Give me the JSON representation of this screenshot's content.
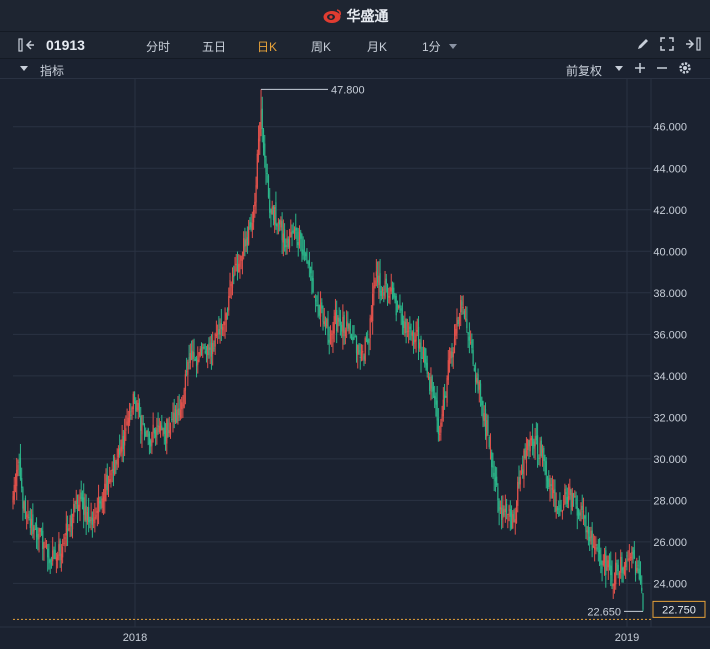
{
  "app": {
    "title": "华盛通"
  },
  "toolbar": {
    "code": "01913",
    "timeframes": [
      {
        "label": "分时",
        "active": false
      },
      {
        "label": "五日",
        "active": false
      },
      {
        "label": "日K",
        "active": true
      },
      {
        "label": "周K",
        "active": false
      },
      {
        "label": "月K",
        "active": false
      },
      {
        "label": "1分",
        "active": false,
        "dropdown": true
      }
    ]
  },
  "indicator_bar": {
    "label": "指标",
    "adjust": "前复权"
  },
  "colors": {
    "up": "#e2524c",
    "down": "#2bb68a",
    "accent": "#e8a33a",
    "bg": "#1b2230",
    "grid": "#2a3242"
  },
  "chart_data": {
    "type": "candlestick",
    "y_ticks": [
      "46.000",
      "44.000",
      "42.000",
      "40.000",
      "38.000",
      "36.000",
      "34.000",
      "32.000",
      "30.000",
      "28.000",
      "26.000",
      "24.000"
    ],
    "ylim": [
      21.9,
      48.3
    ],
    "x_ticks": [
      "2018",
      "2019"
    ],
    "high_label": "47.800",
    "low_label": "22.650",
    "last_price": "22.750",
    "anchors": [
      [
        0,
        28.2
      ],
      [
        4,
        29.7
      ],
      [
        10,
        27.1
      ],
      [
        18,
        26.6
      ],
      [
        25,
        26.0
      ],
      [
        30,
        25.0
      ],
      [
        36,
        25.4
      ],
      [
        44,
        26.5
      ],
      [
        50,
        27.6
      ],
      [
        56,
        27.9
      ],
      [
        62,
        26.9
      ],
      [
        68,
        27.5
      ],
      [
        74,
        28.8
      ],
      [
        80,
        29.5
      ],
      [
        86,
        30.2
      ],
      [
        92,
        31.8
      ],
      [
        98,
        32.8
      ],
      [
        104,
        31.7
      ],
      [
        110,
        30.7
      ],
      [
        116,
        31.5
      ],
      [
        122,
        31.2
      ],
      [
        128,
        31.9
      ],
      [
        134,
        32.1
      ],
      [
        140,
        34.2
      ],
      [
        146,
        34.9
      ],
      [
        152,
        35.2
      ],
      [
        158,
        35.0
      ],
      [
        164,
        36.0
      ],
      [
        170,
        36.6
      ],
      [
        176,
        38.4
      ],
      [
        182,
        39.4
      ],
      [
        188,
        40.6
      ],
      [
        194,
        42.0
      ],
      [
        200,
        46.8
      ],
      [
        204,
        43.8
      ],
      [
        208,
        41.8
      ],
      [
        214,
        41.4
      ],
      [
        220,
        40.2
      ],
      [
        226,
        40.9
      ],
      [
        232,
        40.6
      ],
      [
        238,
        39.4
      ],
      [
        244,
        37.6
      ],
      [
        250,
        36.6
      ],
      [
        256,
        36.0
      ],
      [
        262,
        36.8
      ],
      [
        268,
        36.2
      ],
      [
        274,
        35.7
      ],
      [
        280,
        34.9
      ],
      [
        286,
        35.6
      ],
      [
        292,
        38.6
      ],
      [
        298,
        38.2
      ],
      [
        304,
        38.0
      ],
      [
        310,
        37.1
      ],
      [
        316,
        36.6
      ],
      [
        322,
        36.1
      ],
      [
        328,
        35.6
      ],
      [
        334,
        34.1
      ],
      [
        340,
        32.9
      ],
      [
        344,
        31.2
      ],
      [
        350,
        33.9
      ],
      [
        356,
        35.8
      ],
      [
        362,
        37.4
      ],
      [
        368,
        35.7
      ],
      [
        374,
        33.9
      ],
      [
        380,
        32.2
      ],
      [
        386,
        29.6
      ],
      [
        392,
        27.5
      ],
      [
        398,
        27.4
      ],
      [
        404,
        27.1
      ],
      [
        410,
        29.6
      ],
      [
        416,
        30.6
      ],
      [
        422,
        30.9
      ],
      [
        428,
        29.9
      ],
      [
        434,
        28.7
      ],
      [
        440,
        27.6
      ],
      [
        446,
        28.3
      ],
      [
        452,
        28.1
      ],
      [
        458,
        27.5
      ],
      [
        464,
        26.4
      ],
      [
        470,
        25.9
      ],
      [
        476,
        25.1
      ],
      [
        482,
        24.4
      ],
      [
        488,
        24.6
      ],
      [
        494,
        25.1
      ],
      [
        500,
        25.4
      ],
      [
        505,
        24.2
      ],
      [
        508,
        22.75
      ]
    ]
  }
}
